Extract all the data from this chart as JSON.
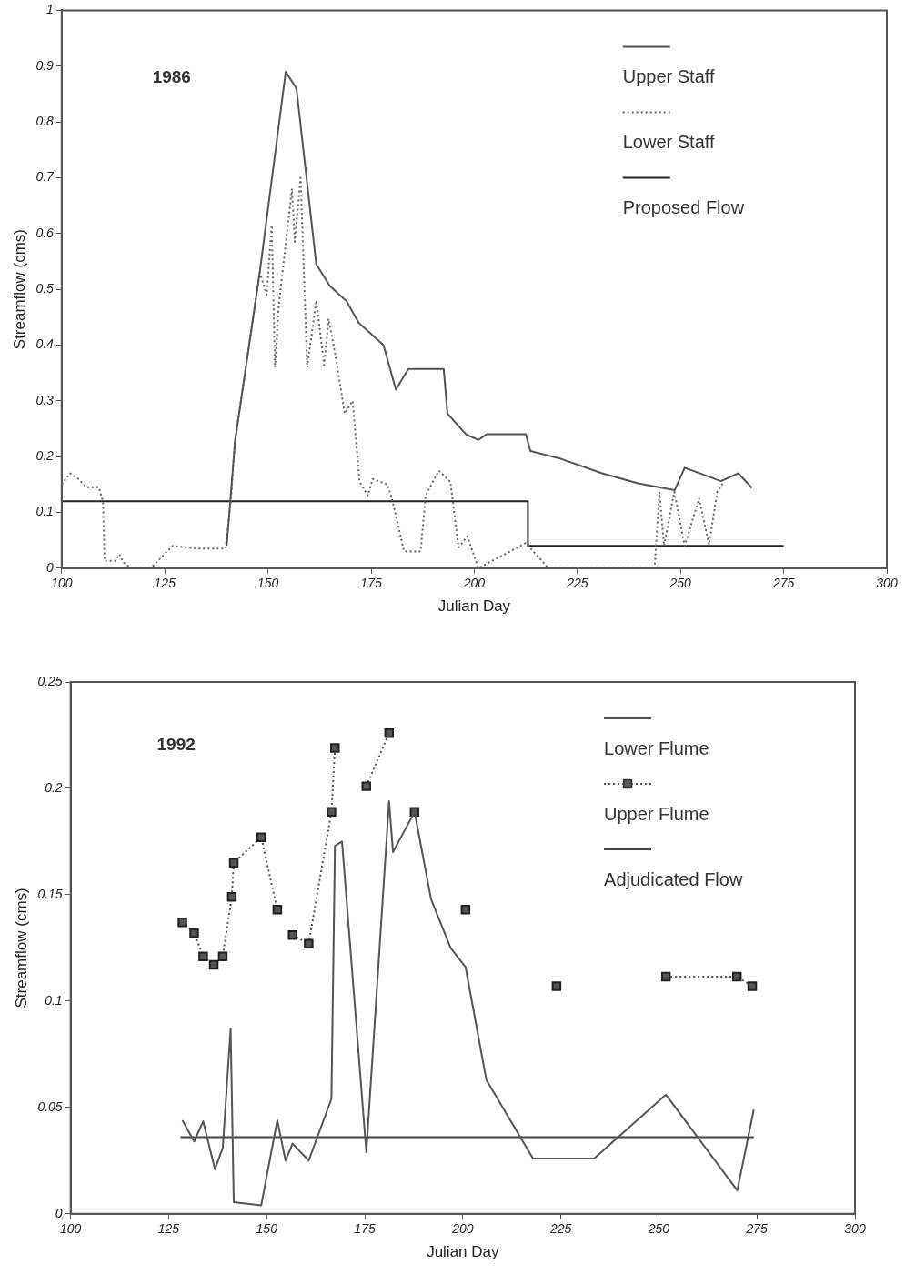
{
  "chart_data": [
    {
      "type": "line",
      "xlabel": "Julian Day",
      "ylabel": "Streamflow (cms)",
      "annotations": [
        "1986"
      ],
      "xlim": [
        100,
        300
      ],
      "xticks": [
        100,
        125,
        150,
        175,
        200,
        225,
        250,
        275,
        300
      ],
      "ylim": [
        0,
        1
      ],
      "yticks": [
        0,
        0.1,
        0.2,
        0.3,
        0.4,
        0.5,
        0.6,
        0.7,
        0.8,
        0.9,
        1
      ],
      "grid": false,
      "legend": "top right",
      "marker": "none",
      "series": [
        {
          "name": "Upper Staff",
          "color": "#555555",
          "line_style": "solid",
          "x": [
            140,
            142,
            148,
            154.3,
            156.9,
            161.7,
            165,
            169,
            172,
            178,
            181,
            184,
            192.6,
            193.5,
            198,
            201,
            203,
            212.5,
            213.6,
            221,
            231,
            239.7,
            248.6,
            251,
            259.8,
            264,
            267.3
          ],
          "values": [
            0.04,
            0.227,
            0.53,
            0.89,
            0.86,
            0.545,
            0.506,
            0.479,
            0.44,
            0.4,
            0.32,
            0.357,
            0.357,
            0.277,
            0.24,
            0.23,
            0.24,
            0.24,
            0.21,
            0.196,
            0.17,
            0.152,
            0.14,
            0.18,
            0.156,
            0.17,
            0.144
          ]
        },
        {
          "name": "Lower Staff",
          "color": "#666666",
          "line_style": "dotted",
          "x": [
            100,
            102,
            104,
            106,
            109,
            110,
            110.4,
            113,
            114,
            115,
            116.8,
            121.6,
            126.9,
            132.9,
            139.7,
            141,
            142,
            148,
            149.7,
            150.9,
            151.7,
            152.6,
            155.8,
            156.5,
            157.9,
            159.5,
            161.7,
            163.6,
            164.7,
            166.5,
            168.6,
            170.5,
            172.2,
            174.2,
            175.4,
            179,
            180.2,
            183,
            187,
            188.2,
            191.4,
            194.2,
            196.2,
            198.3,
            201,
            212.5,
            218,
            243.7,
            244.9,
            246,
            248.5,
            251,
            254.5,
            256.9,
            258.9,
            260.5
          ],
          "values": [
            0.15,
            0.17,
            0.16,
            0.145,
            0.145,
            0.12,
            0.013,
            0.013,
            0.025,
            0.01,
            0,
            0,
            0.04,
            0.035,
            0.035,
            0.12,
            0.227,
            0.53,
            0.49,
            0.615,
            0.36,
            0.47,
            0.68,
            0.585,
            0.7,
            0.36,
            0.48,
            0.364,
            0.447,
            0.375,
            0.277,
            0.3,
            0.155,
            0.13,
            0.16,
            0.15,
            0.12,
            0.03,
            0.03,
            0.13,
            0.175,
            0.155,
            0.037,
            0.057,
            0,
            0.045,
            0,
            0,
            0.137,
            0.04,
            0.137,
            0.04,
            0.125,
            0.042,
            0.137,
            0.155
          ]
        },
        {
          "name": "Proposed Flow",
          "color": "#222222",
          "line_style": "solid",
          "x": [
            100,
            213,
            213,
            275
          ],
          "values": [
            0.12,
            0.12,
            0.04,
            0.04
          ]
        }
      ]
    },
    {
      "type": "line",
      "xlabel": "Julian Day",
      "ylabel": "Streamflow (cms)",
      "annotations": [
        "1992"
      ],
      "xlim": [
        100,
        300
      ],
      "xticks": [
        100,
        125,
        150,
        175,
        200,
        225,
        250,
        275,
        300
      ],
      "ylim": [
        0,
        0.25
      ],
      "yticks": [
        0,
        0.05,
        0.1,
        0.15,
        0.2,
        0.25
      ],
      "grid": false,
      "legend": "top right",
      "marker": "none",
      "series": [
        {
          "name": "Lower Flume",
          "color": "#555555",
          "line_style": "solid",
          "x": [
            128.5,
            131.5,
            133.8,
            136.8,
            138.8,
            140.8,
            141.6,
            148.6,
            152.7,
            154.8,
            156.6,
            160.7,
            166.5,
            167.4,
            169.2,
            175.4,
            181.2,
            182.2,
            187.7,
            191.9,
            196.9,
            200.7,
            206,
            217.9,
            233.5,
            251.8,
            270,
            274.2
          ],
          "values": [
            0.044,
            0.034,
            0.0435,
            0.021,
            0.031,
            0.087,
            0.0055,
            0.004,
            0.044,
            0.025,
            0.033,
            0.025,
            0.054,
            0.173,
            0.175,
            0.029,
            0.194,
            0.17,
            0.189,
            0.148,
            0.125,
            0.116,
            0.063,
            0.026,
            0.026,
            0.056,
            0.011,
            0.049
          ]
        },
        {
          "name": "Upper Flume",
          "color": "#555555",
          "line_style": "dotted",
          "marker": "square",
          "x": [
            128.5,
            131.5,
            133.8,
            136.5,
            138.8,
            141.1,
            141.6,
            148.6,
            152.7,
            154.6,
            156.6,
            160.7,
            166.5,
            167.4,
            171,
            175.4,
            181.2,
            184,
            187.7,
            194,
            200.7,
            212,
            223.9,
            238,
            251.8,
            269.9,
            273.8
          ],
          "values": [
            0.137,
            0.132,
            0.121,
            0.117,
            0.121,
            0.149,
            0.165,
            0.177,
            0.143,
            null,
            0.131,
            0.127,
            0.189,
            0.219,
            null,
            0.201,
            0.226,
            null,
            0.189,
            null,
            0.143,
            null,
            0.107,
            null,
            0.1115,
            0.1115,
            0.107
          ]
        },
        {
          "name": "Adjudicated Flow",
          "color": "#444444",
          "line_style": "solid",
          "x": [
            128,
            274.2
          ],
          "values": [
            0.036,
            0.036
          ]
        }
      ]
    }
  ]
}
